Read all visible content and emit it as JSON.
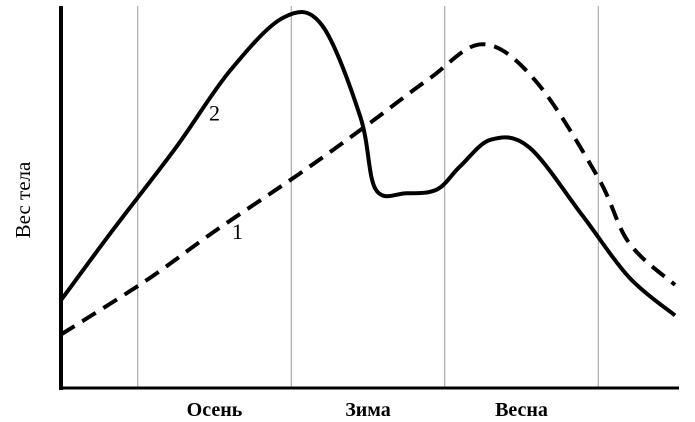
{
  "chart_data": {
    "type": "line",
    "title": "",
    "xlabel": "",
    "ylabel": "Вес тела",
    "categories": [
      "Осень",
      "Зима",
      "Весна"
    ],
    "xlim": [
      0,
      4
    ],
    "ylim": [
      0,
      100
    ],
    "grid": "vertical",
    "series": [
      {
        "name": "1",
        "style": "dashed",
        "x": [
          0.0,
          0.55,
          1.0,
          1.55,
          2.0,
          2.4,
          2.75,
          3.1,
          3.5,
          3.7,
          4.0
        ],
        "y": [
          14,
          28,
          41,
          56,
          69,
          81,
          90,
          80,
          55,
          38,
          27
        ]
      },
      {
        "name": "2",
        "style": "solid",
        "x": [
          0.0,
          0.35,
          0.75,
          1.1,
          1.45,
          1.7,
          1.95,
          2.05,
          2.25,
          2.45,
          2.6,
          2.8,
          3.05,
          3.4,
          3.7,
          4.0
        ],
        "y": [
          23,
          42,
          63,
          83,
          97,
          95,
          71,
          52,
          51,
          52,
          58,
          65,
          63,
          45,
          29,
          19
        ]
      }
    ]
  }
}
